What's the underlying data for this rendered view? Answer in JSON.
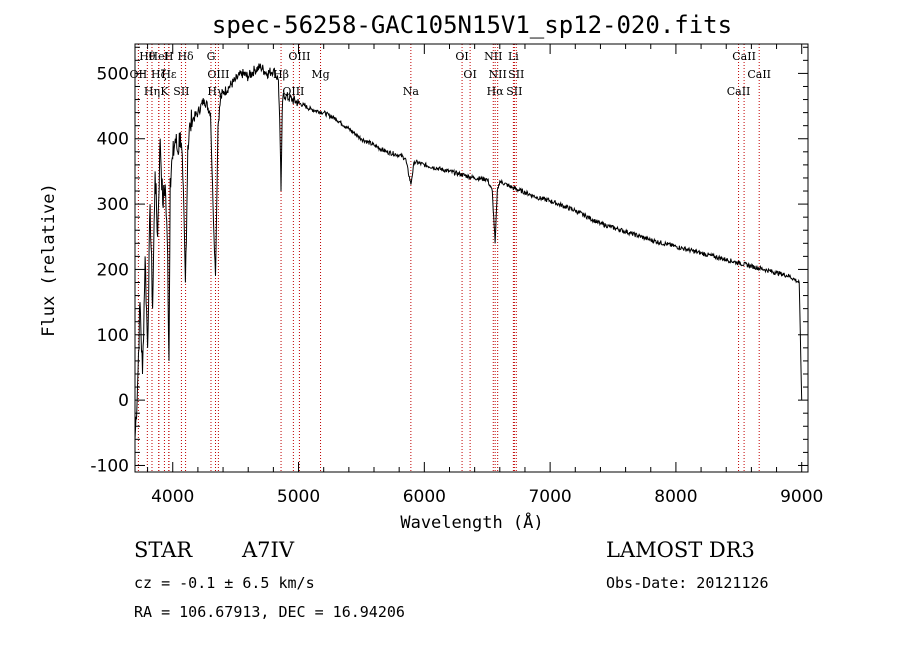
{
  "chart_data": {
    "type": "line",
    "title": "spec-56258-GAC105N15V1_sp12-020.fits",
    "xlabel": "Wavelength (Å)",
    "ylabel": "Flux (relative)",
    "xlim": [
      3700,
      9050
    ],
    "ylim": [
      -110,
      545
    ],
    "xticks": [
      4000,
      5000,
      6000,
      7000,
      8000,
      9000
    ],
    "xtick_labels": [
      "4000",
      "5000",
      "6000",
      "7000",
      "8000",
      "9000"
    ],
    "yticks": [
      -100,
      0,
      100,
      200,
      300,
      400,
      500
    ],
    "ytick_labels": [
      "-100",
      "0",
      "100",
      "200",
      "300",
      "400",
      "500"
    ],
    "grid": false,
    "series": [
      {
        "name": "flux",
        "x": [
          3700,
          3720,
          3740,
          3760,
          3780,
          3800,
          3820,
          3840,
          3860,
          3880,
          3900,
          3920,
          3940,
          3960,
          3970,
          3980,
          4000,
          4020,
          4040,
          4060,
          4080,
          4101,
          4120,
          4140,
          4160,
          4200,
          4250,
          4300,
          4320,
          4340,
          4360,
          4380,
          4400,
          4450,
          4500,
          4550,
          4600,
          4650,
          4700,
          4750,
          4800,
          4840,
          4850,
          4861,
          4870,
          4880,
          4900,
          4950,
          5000,
          5100,
          5200,
          5300,
          5400,
          5500,
          5600,
          5700,
          5800,
          5850,
          5893,
          5920,
          6000,
          6100,
          6200,
          6300,
          6400,
          6500,
          6540,
          6563,
          6580,
          6600,
          6700,
          6800,
          6900,
          7000,
          7200,
          7400,
          7600,
          7800,
          8000,
          8200,
          8400,
          8500,
          8600,
          8700,
          8800,
          8900,
          8980,
          9000
        ],
        "y": [
          -60,
          20,
          150,
          40,
          220,
          80,
          300,
          140,
          350,
          250,
          400,
          300,
          330,
          220,
          60,
          340,
          370,
          400,
          380,
          410,
          340,
          180,
          390,
          420,
          430,
          440,
          460,
          440,
          300,
          190,
          420,
          460,
          470,
          480,
          490,
          500,
          495,
          505,
          510,
          500,
          505,
          490,
          430,
          320,
          440,
          470,
          465,
          460,
          455,
          445,
          440,
          430,
          415,
          400,
          390,
          380,
          375,
          370,
          330,
          365,
          360,
          355,
          350,
          345,
          340,
          338,
          320,
          240,
          320,
          335,
          325,
          318,
          310,
          305,
          290,
          270,
          258,
          245,
          235,
          225,
          215,
          210,
          205,
          200,
          195,
          190,
          180,
          0
        ]
      }
    ],
    "line_features": [
      {
        "label": "Hθ",
        "wavelength": 3798
      },
      {
        "label": "OII",
        "wavelength": 3727
      },
      {
        "label": "Hη",
        "wavelength": 3835
      },
      {
        "label": "HeI",
        "wavelength": 3889
      },
      {
        "label": "Hζ",
        "wavelength": 3889
      },
      {
        "label": "K",
        "wavelength": 3934
      },
      {
        "label": "H",
        "wavelength": 3968
      },
      {
        "label": "Hε",
        "wavelength": 3970
      },
      {
        "label": "SII",
        "wavelength": 4069
      },
      {
        "label": "Hδ",
        "wavelength": 4102
      },
      {
        "label": "OIII",
        "wavelength": 4363
      },
      {
        "label": "Hγ",
        "wavelength": 4340
      },
      {
        "label": "G",
        "wavelength": 4304
      },
      {
        "label": "Hβ",
        "wavelength": 4861
      },
      {
        "label": "OIII",
        "wavelength": 4959
      },
      {
        "label": "OIII",
        "wavelength": 5007
      },
      {
        "label": "Mg",
        "wavelength": 5175
      },
      {
        "label": "Na",
        "wavelength": 5893
      },
      {
        "label": "OI",
        "wavelength": 6300
      },
      {
        "label": "OI",
        "wavelength": 6364
      },
      {
        "label": "Hα",
        "wavelength": 6563
      },
      {
        "label": "NII",
        "wavelength": 6548
      },
      {
        "label": "NII",
        "wavelength": 6583
      },
      {
        "label": "SII",
        "wavelength": 6716
      },
      {
        "label": "Li",
        "wavelength": 6708
      },
      {
        "label": "SII",
        "wavelength": 6731
      },
      {
        "label": "CaII",
        "wavelength": 8498
      },
      {
        "label": "CaII",
        "wavelength": 8542
      },
      {
        "label": "CaII",
        "wavelength": 8662
      }
    ]
  },
  "info": {
    "object_class": "STAR",
    "subclass": "A7IV",
    "survey": "LAMOST DR3",
    "cz": "cz = -0.1 ± 6.5 km/s",
    "obs_date": "Obs-Date: 20121126",
    "coords": "RA = 106.67913, DEC =  16.94206"
  },
  "colors": {
    "spectrum": "#000000",
    "feature_line": "#c00000",
    "axes": "#000000"
  }
}
